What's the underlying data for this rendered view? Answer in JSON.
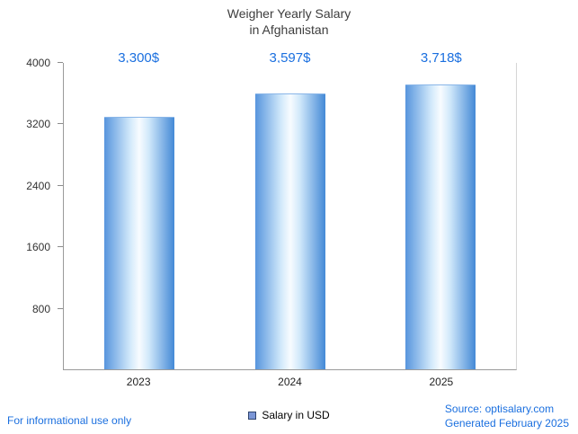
{
  "title": {
    "line1": "Weigher Yearly Salary",
    "line2": "in Afghanistan"
  },
  "chart_data": {
    "type": "bar",
    "title": "Weigher Yearly Salary in Afghanistan",
    "categories": [
      "2023",
      "2024",
      "2025"
    ],
    "values": [
      3300,
      3597,
      3718
    ],
    "value_labels": [
      "3,300$",
      "3,597$",
      "3,718$"
    ],
    "series": [
      {
        "name": "Salary in USD",
        "values": [
          3300,
          3597,
          3718
        ]
      }
    ],
    "xlabel": "",
    "ylabel": "",
    "ylim": [
      0,
      4000
    ],
    "yticks": [
      800,
      1600,
      2400,
      3200,
      4000
    ],
    "grid": false,
    "legend_entries": [
      "Salary in USD"
    ],
    "legend_position": "bottom-center"
  },
  "legend": {
    "salary_label": "Salary in USD"
  },
  "footer": {
    "left": "For informational use only",
    "source": "Source: optisalary.com",
    "generated": "Generated February 2025"
  },
  "colors": {
    "accent": "#1a6fdf",
    "bar_edge": "#5795dd",
    "bar_edge2": "#4489d6",
    "bar_center": "#f8fcff"
  }
}
